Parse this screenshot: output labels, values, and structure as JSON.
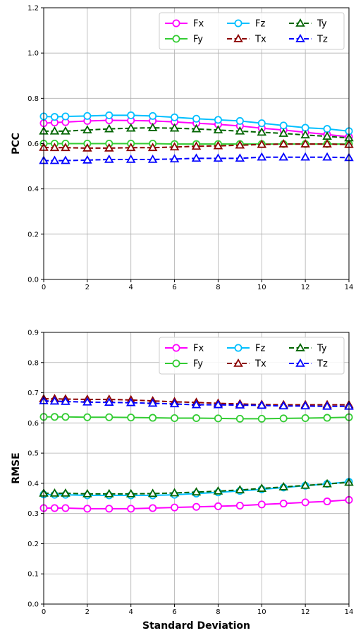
{
  "chart_data": [
    {
      "type": "line",
      "title": "",
      "xlabel": "",
      "ylabel": "PCC",
      "xlim": [
        0,
        14
      ],
      "ylim": [
        0.0,
        1.2
      ],
      "xticks": [
        0,
        2,
        4,
        6,
        8,
        10,
        12,
        14
      ],
      "yticks": [
        "0.0",
        "0.2",
        "0.4",
        "0.6",
        "0.8",
        "1.0",
        "1.2"
      ],
      "grid": true,
      "legend_position": "top-right",
      "x": [
        0,
        0.5,
        1,
        2,
        3,
        4,
        5,
        6,
        7,
        8,
        9,
        10,
        11,
        12,
        13,
        14
      ],
      "series": [
        {
          "name": "Fx",
          "color": "#ff00ff",
          "marker": "circle",
          "linestyle": "solid",
          "values": [
            0.69,
            0.693,
            0.695,
            0.7,
            0.703,
            0.702,
            0.7,
            0.696,
            0.69,
            0.685,
            0.678,
            0.668,
            0.66,
            0.65,
            0.64,
            0.63
          ]
        },
        {
          "name": "Fy",
          "color": "#33cc33",
          "marker": "circle",
          "linestyle": "solid",
          "values": [
            0.6,
            0.6,
            0.6,
            0.6,
            0.6,
            0.6,
            0.6,
            0.598,
            0.598,
            0.598,
            0.598,
            0.598,
            0.598,
            0.598,
            0.598,
            0.598
          ]
        },
        {
          "name": "Fz",
          "color": "#00bfff",
          "marker": "circle",
          "linestyle": "solid",
          "values": [
            0.72,
            0.718,
            0.72,
            0.722,
            0.725,
            0.725,
            0.722,
            0.716,
            0.71,
            0.705,
            0.7,
            0.69,
            0.68,
            0.67,
            0.665,
            0.655
          ]
        },
        {
          "name": "Tx",
          "color": "#8b0000",
          "marker": "triangle",
          "linestyle": "dashed",
          "values": [
            0.583,
            0.582,
            0.582,
            0.58,
            0.58,
            0.582,
            0.582,
            0.585,
            0.588,
            0.59,
            0.593,
            0.596,
            0.598,
            0.598,
            0.598,
            0.596
          ]
        },
        {
          "name": "Ty",
          "color": "#006400",
          "marker": "triangle",
          "linestyle": "dashed",
          "values": [
            0.655,
            0.655,
            0.655,
            0.66,
            0.665,
            0.668,
            0.67,
            0.668,
            0.665,
            0.66,
            0.655,
            0.65,
            0.645,
            0.638,
            0.632,
            0.625
          ]
        },
        {
          "name": "Tz",
          "color": "#0000ff",
          "marker": "triangle",
          "linestyle": "dashed",
          "values": [
            0.525,
            0.525,
            0.525,
            0.527,
            0.53,
            0.53,
            0.53,
            0.532,
            0.535,
            0.535,
            0.535,
            0.54,
            0.54,
            0.54,
            0.54,
            0.538
          ]
        }
      ]
    },
    {
      "type": "line",
      "title": "",
      "xlabel": "Standard Deviation",
      "ylabel": "RMSE",
      "xlim": [
        0,
        14
      ],
      "ylim": [
        0.0,
        0.9
      ],
      "xticks": [
        0,
        2,
        4,
        6,
        8,
        10,
        12,
        14
      ],
      "yticks": [
        "0.0",
        "0.1",
        "0.2",
        "0.3",
        "0.4",
        "0.5",
        "0.6",
        "0.7",
        "0.8",
        "0.9"
      ],
      "grid": true,
      "legend_position": "top-right",
      "x": [
        0,
        0.5,
        1,
        2,
        3,
        4,
        5,
        6,
        7,
        8,
        9,
        10,
        11,
        12,
        13,
        14
      ],
      "series": [
        {
          "name": "Fx",
          "color": "#ff00ff",
          "marker": "circle",
          "linestyle": "solid",
          "values": [
            0.318,
            0.318,
            0.318,
            0.316,
            0.316,
            0.316,
            0.318,
            0.32,
            0.322,
            0.324,
            0.326,
            0.33,
            0.333,
            0.337,
            0.34,
            0.345
          ]
        },
        {
          "name": "Fy",
          "color": "#33cc33",
          "marker": "circle",
          "linestyle": "solid",
          "values": [
            0.62,
            0.62,
            0.62,
            0.619,
            0.619,
            0.618,
            0.617,
            0.616,
            0.616,
            0.615,
            0.614,
            0.614,
            0.615,
            0.616,
            0.617,
            0.619
          ]
        },
        {
          "name": "Fz",
          "color": "#00bfff",
          "marker": "circle",
          "linestyle": "solid",
          "values": [
            0.363,
            0.362,
            0.362,
            0.36,
            0.36,
            0.36,
            0.36,
            0.362,
            0.366,
            0.37,
            0.375,
            0.38,
            0.386,
            0.392,
            0.398,
            0.405
          ]
        },
        {
          "name": "Tx",
          "color": "#8b0000",
          "marker": "triangle",
          "linestyle": "dashed",
          "values": [
            0.68,
            0.68,
            0.679,
            0.678,
            0.678,
            0.676,
            0.673,
            0.67,
            0.668,
            0.665,
            0.663,
            0.661,
            0.66,
            0.66,
            0.66,
            0.66
          ]
        },
        {
          "name": "Ty",
          "color": "#006400",
          "marker": "triangle",
          "linestyle": "dashed",
          "values": [
            0.367,
            0.367,
            0.367,
            0.365,
            0.365,
            0.365,
            0.366,
            0.368,
            0.371,
            0.374,
            0.378,
            0.383,
            0.388,
            0.393,
            0.398,
            0.403
          ]
        },
        {
          "name": "Tz",
          "color": "#0000ff",
          "marker": "triangle",
          "linestyle": "dashed",
          "values": [
            0.673,
            0.672,
            0.671,
            0.669,
            0.668,
            0.667,
            0.665,
            0.663,
            0.66,
            0.66,
            0.659,
            0.658,
            0.656,
            0.656,
            0.655,
            0.655
          ]
        }
      ]
    }
  ]
}
